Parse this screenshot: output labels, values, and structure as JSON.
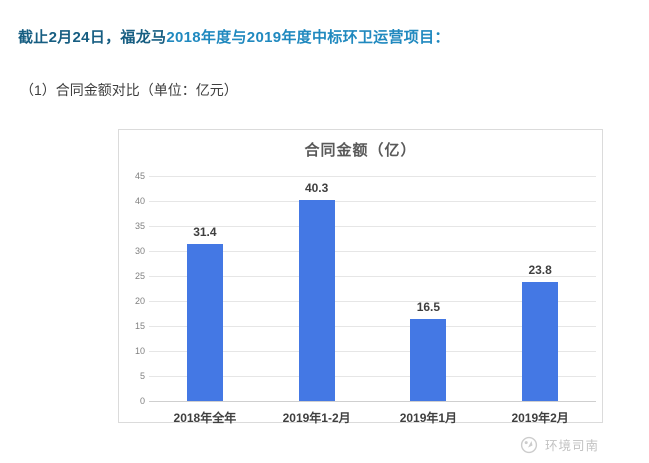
{
  "page": {
    "heading_parts": [
      {
        "text": "截止2月24日，福龙马"
      },
      {
        "text": "2018年度与2019年度中标环卫运营项目："
      }
    ],
    "subheading": "（1）合同金额对比（单位：亿元）",
    "watermark": {
      "brand": "环境司南"
    }
  },
  "colors": {
    "heading_dark": "#175E82",
    "heading_light": "#2089BF",
    "subheading_gray": "#3E3E3E",
    "chart_title_gray": "#595959",
    "bar_blue": "#4478E4",
    "gridline_gray": "#E6E6E6",
    "axis_line_gray": "#CFCFCF",
    "tick_label_gray": "#808080",
    "label_dark_gray": "#3F3F3F",
    "chart_border_gray": "#DBDBDB",
    "watermark_gray": "#C2C2C2"
  },
  "chart_data": {
    "type": "bar",
    "title": "合同金额（亿）",
    "categories": [
      "2018年全年",
      "2019年1-2月",
      "2019年1月",
      "2019年2月"
    ],
    "values": [
      31.4,
      40.3,
      16.5,
      23.8
    ],
    "xlabel": "",
    "ylabel": "",
    "ylim": [
      0,
      45
    ],
    "ytick_step": 5,
    "grid": true,
    "legend_position": "none",
    "data_labels": true
  }
}
